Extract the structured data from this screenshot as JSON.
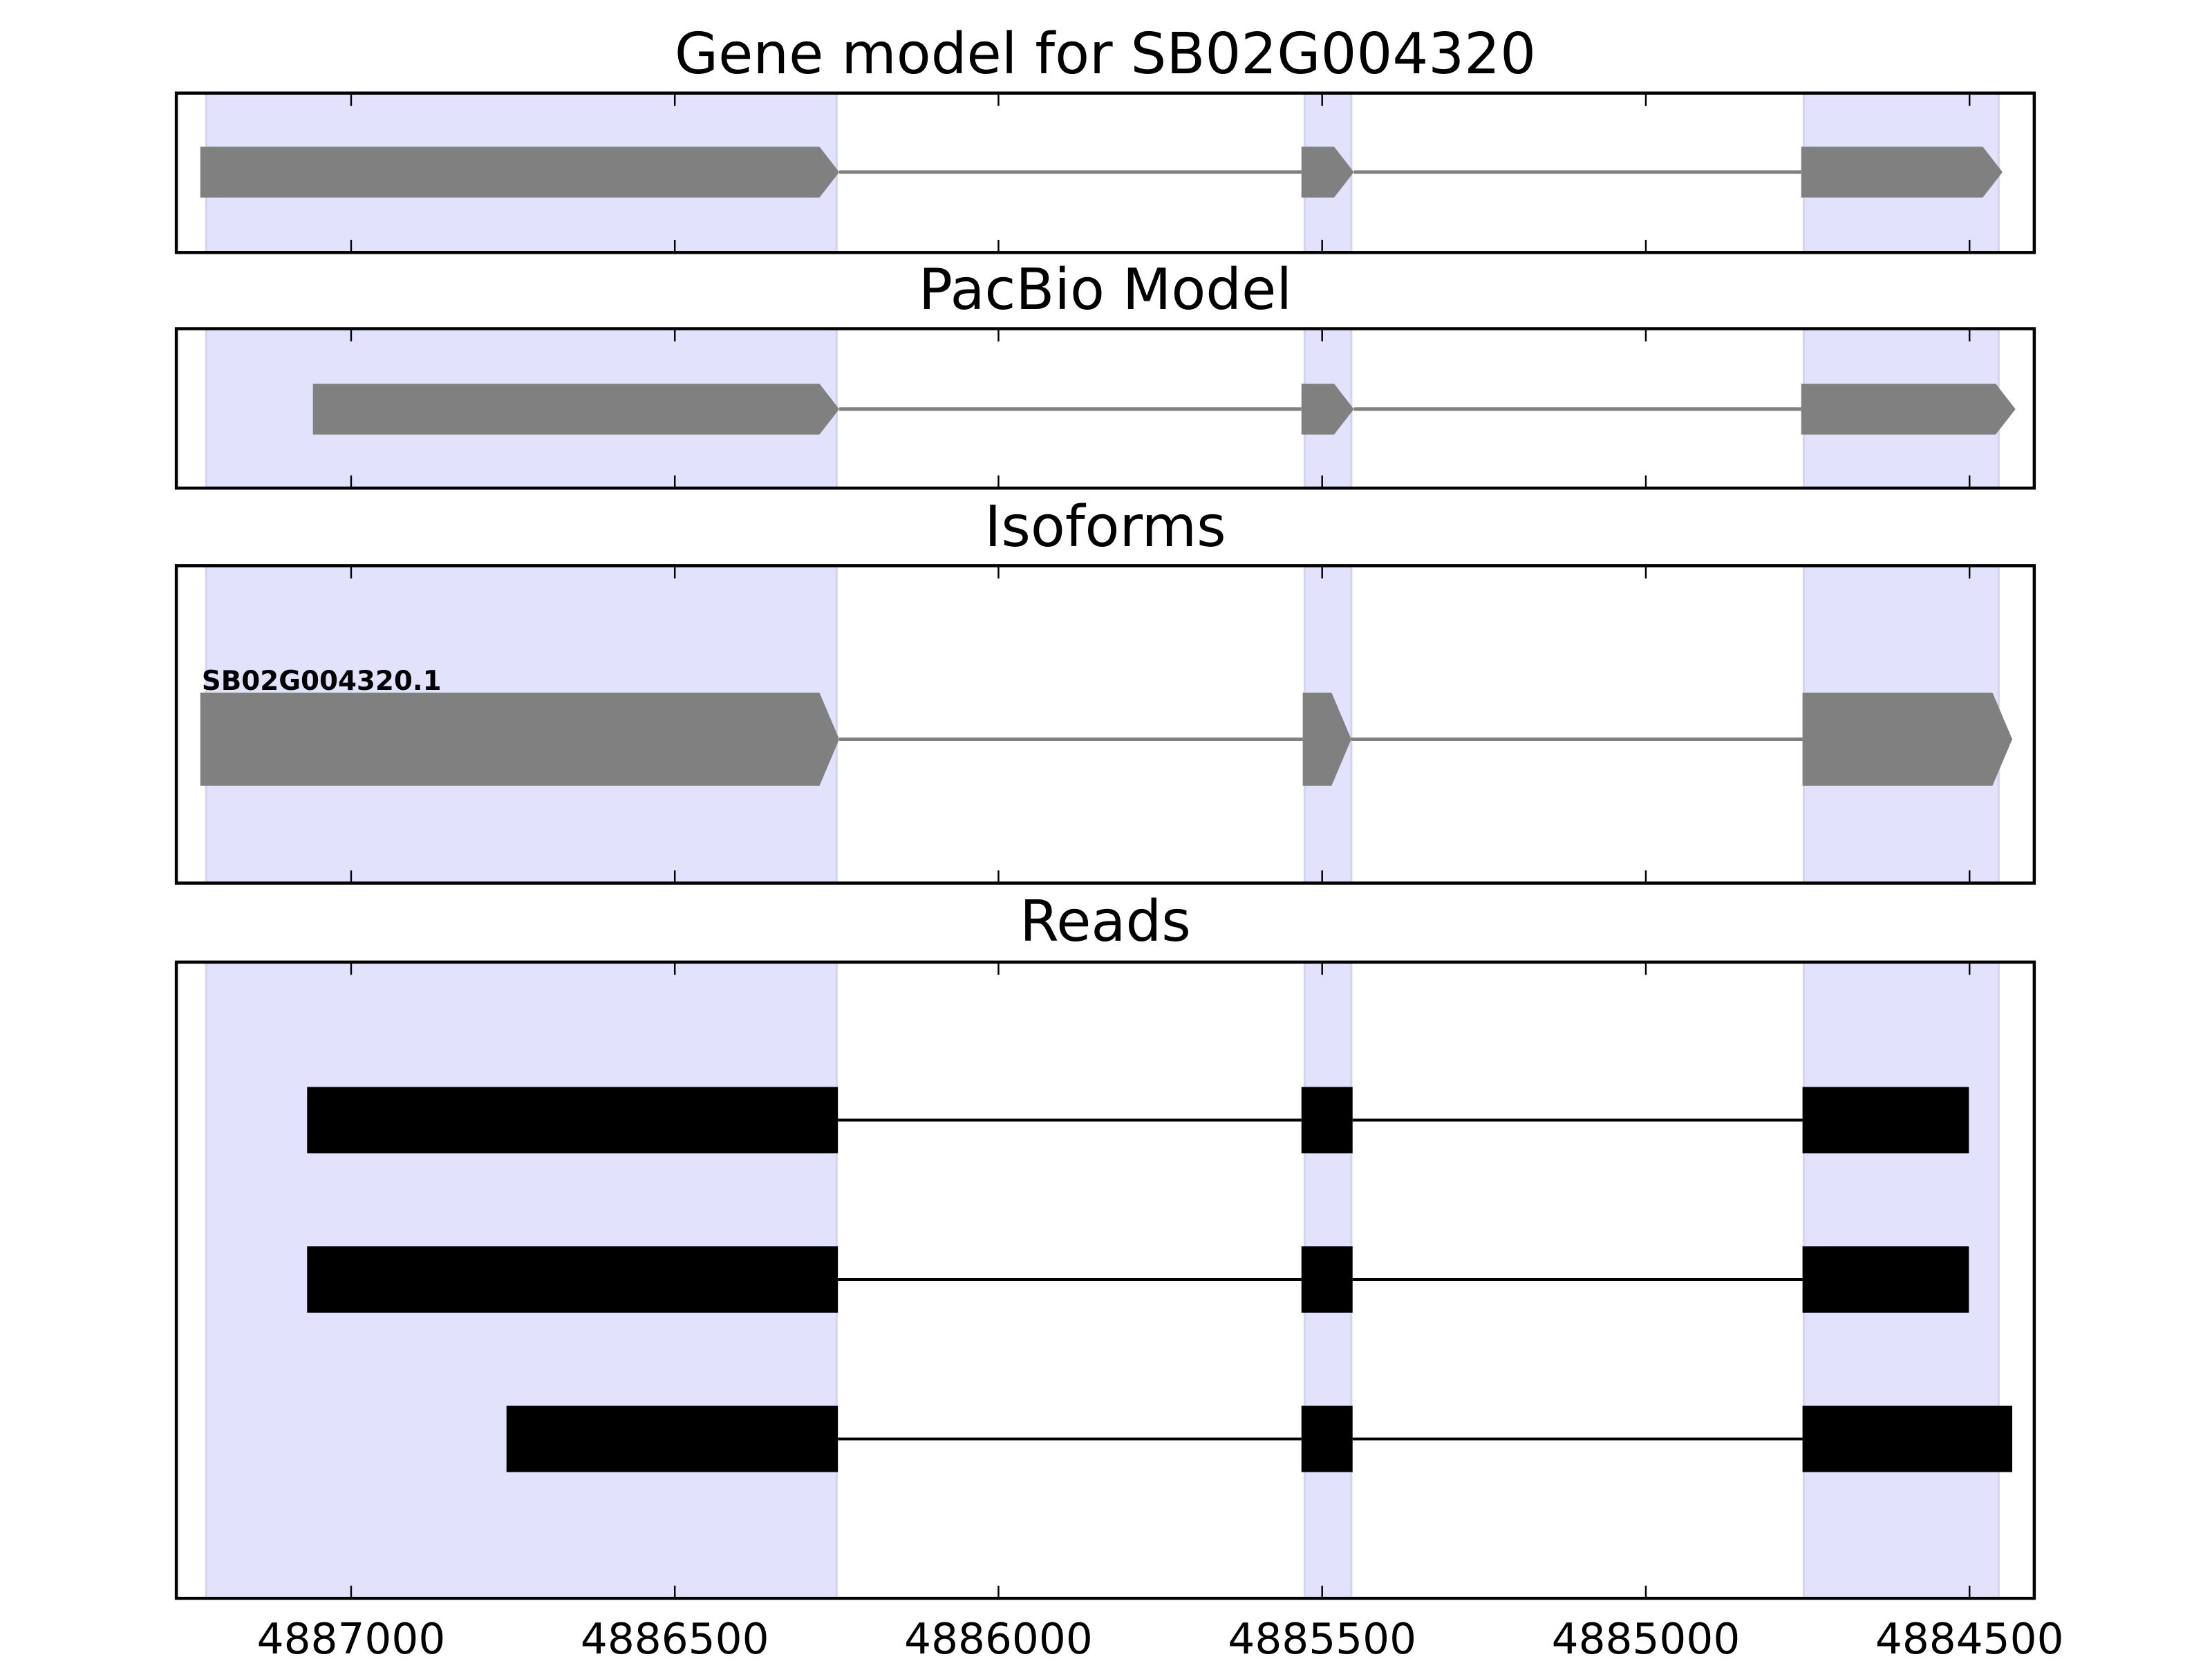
{
  "chart_data": {
    "type": "gene-track",
    "xlabel": "",
    "xlim": [
      4887270,
      4884400
    ],
    "x_reversed": true,
    "xticks": [
      4887000,
      4886500,
      4886000,
      4885500,
      4885000,
      4884500
    ],
    "xtick_labels": [
      "4887000",
      "4886500",
      "4886000",
      "4885500",
      "4885000",
      "4884500"
    ],
    "highlight_color": "#e2e2fc",
    "highlight_regions": [
      [
        4887224,
        4886250
      ],
      [
        4885527,
        4885455
      ],
      [
        4884756,
        4884455
      ]
    ],
    "panels": [
      {
        "title": "Gene model for SB02G004320",
        "style": "arrow",
        "color": "#808080",
        "features": [
          {
            "label": "",
            "exons": [
              [
                4887233,
                4886246
              ],
              [
                4885532,
                4885451
              ],
              [
                4884760,
                4884449
              ]
            ]
          }
        ]
      },
      {
        "title": "PacBio Model",
        "style": "arrow",
        "color": "#808080",
        "features": [
          {
            "label": "",
            "exons": [
              [
                4887059,
                4886246
              ],
              [
                4885532,
                4885451
              ],
              [
                4884760,
                4884429
              ]
            ]
          }
        ]
      },
      {
        "title": "Isoforms",
        "style": "arrow",
        "color": "#808080",
        "features": [
          {
            "label": "SB02G004320.1",
            "exons": [
              [
                4887233,
                4886246
              ],
              [
                4885530,
                4885455
              ],
              [
                4884758,
                4884434
              ]
            ]
          }
        ]
      },
      {
        "title": "Reads",
        "style": "block",
        "color": "#000000",
        "features": [
          {
            "label": "",
            "exons": [
              [
                4887068,
                4886248
              ],
              [
                4885532,
                4885453
              ],
              [
                4884758,
                4884501
              ]
            ]
          },
          {
            "label": "",
            "exons": [
              [
                4887068,
                4886248
              ],
              [
                4885532,
                4885453
              ],
              [
                4884758,
                4884501
              ]
            ]
          },
          {
            "label": "",
            "exons": [
              [
                4886760,
                4886248
              ],
              [
                4885532,
                4885453
              ],
              [
                4884758,
                4884434
              ]
            ]
          }
        ]
      }
    ]
  }
}
